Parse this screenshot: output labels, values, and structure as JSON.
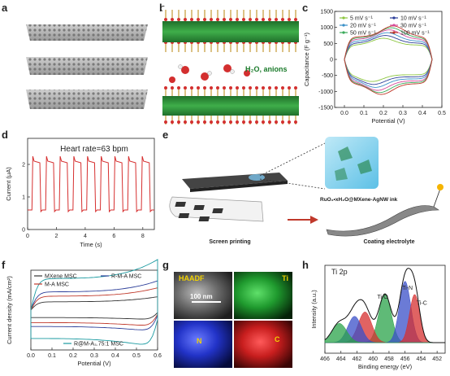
{
  "figure": {
    "panel_labels": {
      "a": "a",
      "b": "b",
      "c": "c",
      "d": "d",
      "e": "e",
      "f": "f",
      "g": "g",
      "h": "h"
    }
  },
  "panel_b": {
    "label": "H₂O, anions"
  },
  "panel_e": {
    "ink_label": "RuO₂•xH₂O@MXene-AgNW ink",
    "screen_printing": "Screen printing",
    "coating": "Coating electrolyte"
  },
  "panel_g": {
    "haadf": "HAADF",
    "ti": "Ti",
    "n": "N",
    "c": "C",
    "scalebar": "100 nm"
  },
  "chart_data": [
    {
      "id": "c",
      "type": "line",
      "xlabel": "Potential (V)",
      "ylabel": "Capacitance (F g⁻¹)",
      "xlim": [
        -0.05,
        0.5
      ],
      "ylim": [
        -1500,
        1500
      ],
      "xticks": [
        0.0,
        0.1,
        0.2,
        0.3,
        0.4,
        0.5
      ],
      "yticks": [
        -1500,
        -1000,
        -500,
        0,
        500,
        1000,
        1500
      ],
      "legend_position": "top",
      "series": [
        {
          "name": "5 mV s⁻¹",
          "color": "#8cc63f",
          "amp": 600,
          "peak": 0.2
        },
        {
          "name": "10 mV s⁻¹",
          "color": "#2c3e99",
          "amp": 680,
          "peak": 0.21
        },
        {
          "name": "20 mV s⁻¹",
          "color": "#3a90c8",
          "amp": 760,
          "peak": 0.22
        },
        {
          "name": "30 mV s⁻¹",
          "color": "#d64a9a",
          "amp": 840,
          "peak": 0.23
        },
        {
          "name": "50 mV s⁻¹",
          "color": "#3aaa5a",
          "amp": 900,
          "peak": 0.24
        },
        {
          "name": "100 mV s⁻¹",
          "color": "#c0392b",
          "amp": 950,
          "peak": 0.25
        }
      ]
    },
    {
      "id": "d",
      "type": "line",
      "title": "Heart rate=63 bpm",
      "xlabel": "Time (s)",
      "ylabel": "Current (μA)",
      "xlim": [
        0,
        8.8
      ],
      "ylim": [
        0,
        2.8
      ],
      "xticks": [
        0,
        2,
        4,
        6,
        8
      ],
      "yticks": [
        0,
        1,
        2
      ],
      "color": "#d62f2f",
      "pulse_starts": [
        0.3,
        1.25,
        2.2,
        3.15,
        4.1,
        5.05,
        6.0,
        6.95,
        7.9
      ],
      "high": 2.1,
      "low": 0.6
    },
    {
      "id": "f",
      "type": "line",
      "xlabel": "Potential (V)",
      "ylabel": "Current density (mA/cm²)",
      "xlim": [
        0,
        0.6
      ],
      "xticks": [
        0.0,
        0.1,
        0.2,
        0.3,
        0.4,
        0.5,
        0.6
      ],
      "series": [
        {
          "name": "MXene MSC",
          "color": "#333333",
          "amp": 0.25
        },
        {
          "name": "R-M-A MSC",
          "color": "#2c3e99",
          "amp": 0.55
        },
        {
          "name": "M-A MSC",
          "color": "#c0392b",
          "amp": 0.42
        },
        {
          "name": "R@M-A₃.75:1 MSC",
          "color": "#1a9aa0",
          "amp": 0.95
        }
      ]
    },
    {
      "id": "h",
      "type": "area",
      "title": "Ti 2p",
      "xlabel": "Binding energy (eV)",
      "ylabel": "Intensity (a.u.)",
      "xlim": [
        466,
        451
      ],
      "xticks": [
        466,
        464,
        462,
        460,
        458,
        456,
        454,
        452
      ],
      "peaks": [
        {
          "name": "Ti-O",
          "color": "#2aa34a",
          "center": 458.5,
          "height": 0.55,
          "width": 1.1
        },
        {
          "name": "Ti-N",
          "color": "#3a4fc8",
          "center": 456.0,
          "height": 0.7,
          "width": 1.0
        },
        {
          "name": "Ti-C",
          "color": "#d62f2f",
          "center": 454.8,
          "height": 0.55,
          "width": 0.9
        },
        {
          "name": "",
          "color": "#d62f2f",
          "center": 461.0,
          "height": 0.35,
          "width": 1.2
        },
        {
          "name": "",
          "color": "#3a4fc8",
          "center": 462.3,
          "height": 0.3,
          "width": 1.2
        },
        {
          "name": "",
          "color": "#2aa34a",
          "center": 464.2,
          "height": 0.22,
          "width": 1.3
        }
      ]
    }
  ]
}
